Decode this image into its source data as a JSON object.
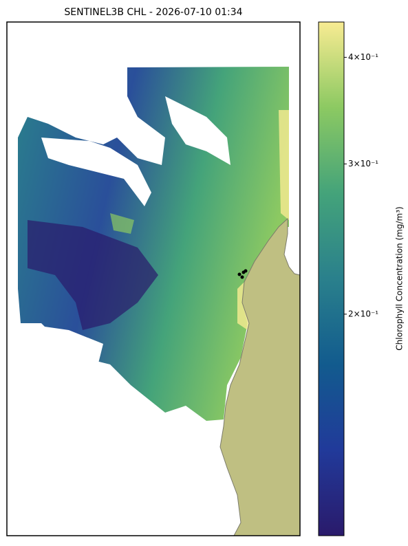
{
  "chart_data": {
    "type": "map",
    "title": "SENTINEL3B CHL - 2026-07-10 01:34",
    "colorbar": {
      "label": "Chlorophyll Concentration (mg/m³)",
      "scale": "log",
      "lim": [
        0.11,
        0.44
      ],
      "ticks": [
        {
          "value": 0.2,
          "label": "2×10⁻¹"
        },
        {
          "value": 0.3,
          "label": "3×10⁻¹"
        },
        {
          "value": 0.4,
          "label": "4×10⁻¹"
        }
      ],
      "colors": [
        "#2a1a6b",
        "#213a9a",
        "#125b8e",
        "#2a808c",
        "#44a37a",
        "#8cc962",
        "#f8eb92"
      ]
    },
    "land_color": "#bfbf82"
  }
}
